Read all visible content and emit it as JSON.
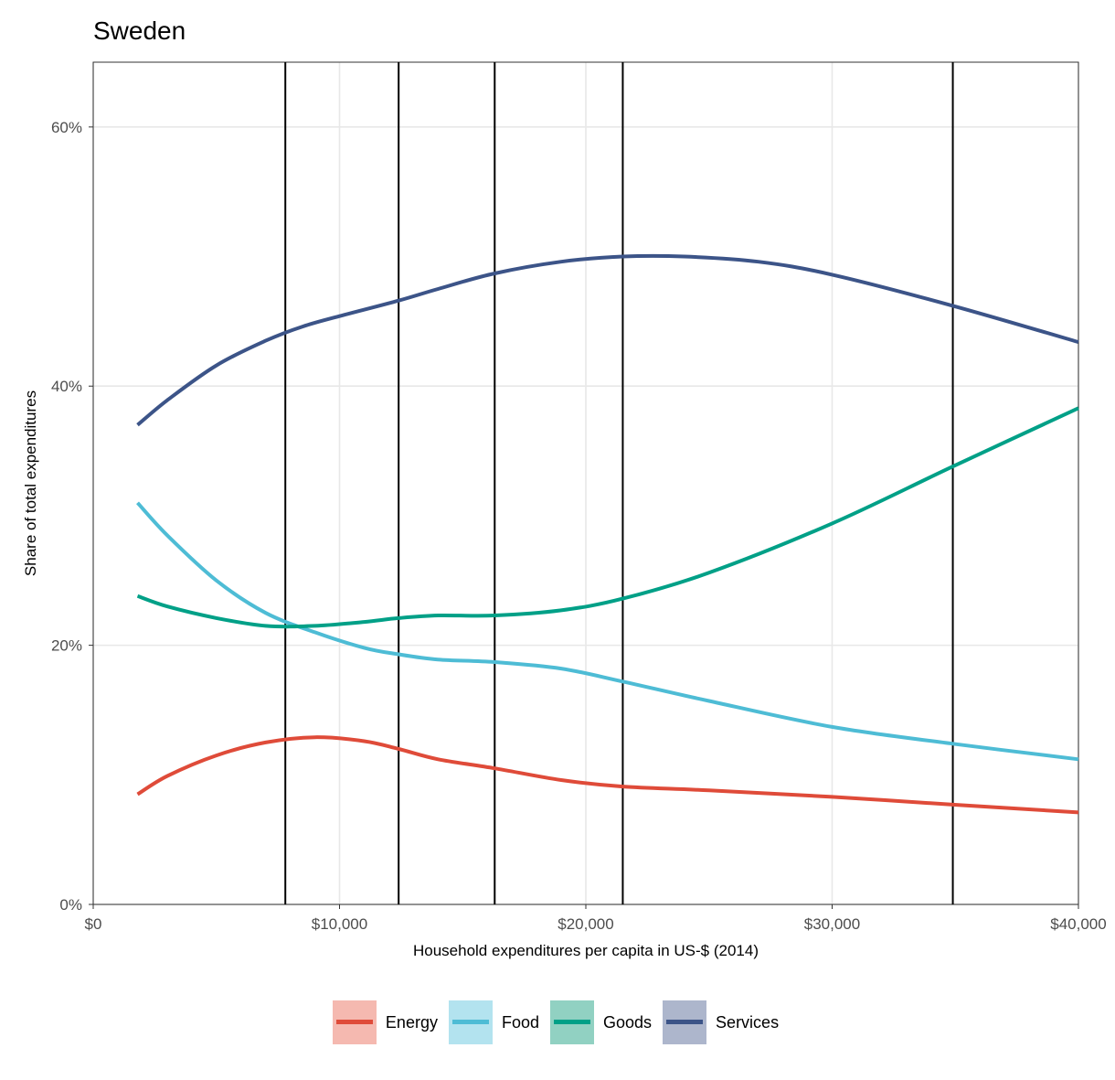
{
  "chart_data": {
    "type": "line",
    "title": "Sweden",
    "xlabel": "Household expenditures per capita in US-$ (2014)",
    "ylabel": "Share of total expenditures",
    "xlim": [
      0,
      40000
    ],
    "ylim": [
      0,
      65
    ],
    "x_ticks": [
      0,
      10000,
      20000,
      30000,
      40000
    ],
    "x_tick_labels": [
      "$0",
      "$10,000",
      "$20,000",
      "$30,000",
      "$40,000"
    ],
    "y_ticks": [
      0,
      20,
      40,
      60
    ],
    "y_tick_labels": [
      "0%",
      "20%",
      "40%",
      "60%"
    ],
    "vlines": [
      7800,
      12400,
      16300,
      21500,
      34900
    ],
    "grid": true,
    "legend_position": "bottom",
    "series": [
      {
        "name": "Energy",
        "color": "#DF4B39",
        "fill_color": "#F5B9B0",
        "x": [
          1800,
          3000,
          5000,
          7000,
          9000,
          11000,
          12400,
          14000,
          16300,
          19000,
          21500,
          25000,
          30000,
          34900,
          40000
        ],
        "y": [
          8.5,
          9.9,
          11.5,
          12.5,
          12.9,
          12.6,
          12.0,
          11.2,
          10.5,
          9.6,
          9.1,
          8.8,
          8.3,
          7.7,
          7.1
        ]
      },
      {
        "name": "Food",
        "color": "#4EBCD5",
        "fill_color": "#B3E3EF",
        "x": [
          1800,
          3000,
          5000,
          7000,
          9000,
          11000,
          12400,
          14000,
          16300,
          19000,
          21500,
          25000,
          30000,
          34900,
          40000
        ],
        "y": [
          31.0,
          28.5,
          25.0,
          22.5,
          21.0,
          19.8,
          19.3,
          18.9,
          18.7,
          18.2,
          17.2,
          15.7,
          13.7,
          12.4,
          11.2
        ]
      },
      {
        "name": "Goods",
        "color": "#00A087",
        "fill_color": "#91D1C2",
        "x": [
          1800,
          3000,
          5000,
          7000,
          9000,
          11000,
          12400,
          14000,
          16300,
          19000,
          21500,
          25000,
          30000,
          34900,
          40000
        ],
        "y": [
          23.8,
          23.0,
          22.1,
          21.5,
          21.5,
          21.8,
          22.1,
          22.3,
          22.3,
          22.7,
          23.6,
          25.6,
          29.4,
          33.8,
          38.3
        ]
      },
      {
        "name": "Services",
        "color": "#3C5488",
        "fill_color": "#ADB6CC",
        "x": [
          1800,
          3000,
          5000,
          7000,
          8500,
          10000,
          12400,
          14000,
          16300,
          19000,
          21500,
          24000,
          27000,
          30000,
          34900,
          40000
        ],
        "y": [
          37.0,
          38.9,
          41.6,
          43.5,
          44.6,
          45.4,
          46.6,
          47.5,
          48.7,
          49.6,
          50.0,
          50.0,
          49.6,
          48.6,
          46.2,
          43.4
        ]
      }
    ]
  }
}
